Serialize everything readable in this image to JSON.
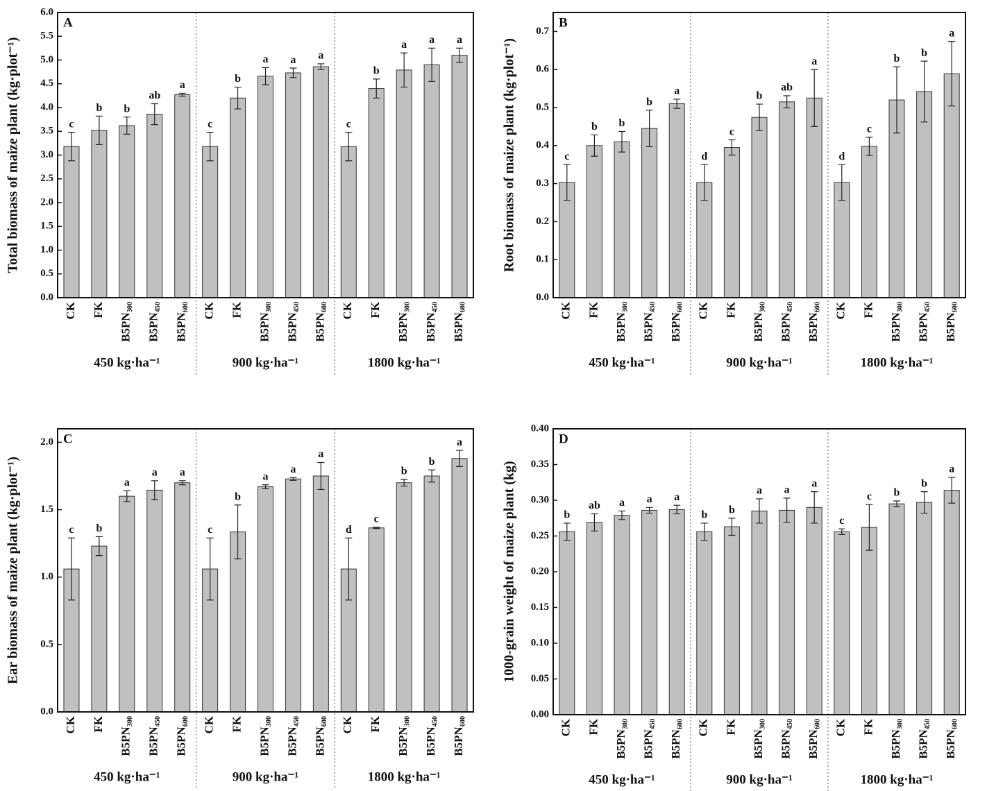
{
  "chart_data": [
    {
      "type": "bar",
      "panel": "A",
      "ylabel": "Total biomass of maize plant (kg·plot⁻¹)",
      "categories": [
        "CK",
        "FK",
        "B5PN₃₀₀",
        "B5PN₄₅₀",
        "B5PN₆₀₀",
        "CK",
        "FK",
        "B5PN₃₀₀",
        "B5PN₄₅₀",
        "B5PN₆₀₀",
        "CK",
        "FK",
        "B5PN₃₀₀",
        "B5PN₄₅₀",
        "B5PN₆₀₀"
      ],
      "groups": [
        "450 kg·ha⁻¹",
        "900 kg·ha⁻¹",
        "1800 kg·ha⁻¹"
      ],
      "values": [
        3.18,
        3.52,
        3.62,
        3.86,
        4.27,
        3.18,
        4.2,
        4.66,
        4.73,
        4.86,
        3.18,
        4.4,
        4.79,
        4.9,
        5.1
      ],
      "errors": [
        0.3,
        0.3,
        0.18,
        0.22,
        0.03,
        0.3,
        0.23,
        0.18,
        0.1,
        0.06,
        0.3,
        0.2,
        0.36,
        0.35,
        0.15
      ],
      "letters": [
        "c",
        "b",
        "b",
        "ab",
        "a",
        "c",
        "b",
        "a",
        "a",
        "a",
        "c",
        "b",
        "a",
        "a",
        "a"
      ],
      "color": "#c0c0c0",
      "ylim": [
        0,
        6
      ],
      "yticks": [
        {
          "value": 0,
          "label": "0.0"
        },
        0.5,
        {
          "value": 1,
          "label": "1.0"
        },
        1.5,
        {
          "value": 2,
          "label": "2.0"
        },
        2.5,
        {
          "value": 3,
          "label": "3.0"
        },
        3.5,
        {
          "value": 4,
          "label": "4.0"
        },
        4.5,
        {
          "value": 5,
          "label": "5.0"
        },
        5.5,
        {
          "value": 6,
          "label": "6.0"
        }
      ]
    },
    {
      "type": "bar",
      "panel": "B",
      "ylabel": "Root biomass of maize plant (kg·plot⁻¹)",
      "categories": [
        "CK",
        "FK",
        "B5PN₃₀₀",
        "B5PN₄₅₀",
        "B5PN₆₀₀",
        "CK",
        "FK",
        "B5PN₃₀₀",
        "B5PN₄₅₀",
        "B5PN₆₀₀",
        "CK",
        "FK",
        "B5PN₃₀₀",
        "B5PN₄₅₀",
        "B5PN₆₀₀"
      ],
      "groups": [
        "450 kg·ha⁻¹",
        "900 kg·ha⁻¹",
        "1800 kg·ha⁻¹"
      ],
      "values": [
        0.303,
        0.4,
        0.41,
        0.445,
        0.51,
        0.303,
        0.395,
        0.474,
        0.515,
        0.525,
        0.303,
        0.398,
        0.52,
        0.542,
        0.589
      ],
      "errors": [
        0.047,
        0.028,
        0.027,
        0.048,
        0.012,
        0.047,
        0.02,
        0.035,
        0.016,
        0.075,
        0.047,
        0.024,
        0.087,
        0.08,
        0.085
      ],
      "letters": [
        "c",
        "b",
        "b",
        "b",
        "a",
        "d",
        "c",
        "b",
        "ab",
        "a",
        "d",
        "c",
        "b",
        "b",
        "a"
      ],
      "color": "#c0c0c0",
      "ylim": [
        0,
        0.75
      ],
      "yticks": [
        {
          "value": 0,
          "label": "0.0"
        },
        0.1,
        0.2,
        0.3,
        0.4,
        0.5,
        0.6,
        0.7
      ]
    },
    {
      "type": "bar",
      "panel": "C",
      "ylabel": "Ear biomass of maize plant (kg·plot⁻¹)",
      "categories": [
        "CK",
        "FK",
        "B5PN₃₀₀",
        "B5PN₄₅₀",
        "B5PN₆₀₀",
        "CK",
        "FK",
        "B5PN₃₀₀",
        "B5PN₄₅₀",
        "B5PN₆₀₀",
        "CK",
        "FK",
        "B5PN₃₀₀",
        "B5PN₄₅₀",
        "B5PN₆₀₀"
      ],
      "groups": [
        "450 kg·ha⁻¹",
        "900 kg·ha⁻¹",
        "1800 kg·ha⁻¹"
      ],
      "values": [
        1.06,
        1.23,
        1.6,
        1.645,
        1.7,
        1.06,
        1.335,
        1.67,
        1.728,
        1.75,
        1.06,
        1.365,
        1.7,
        1.75,
        1.88
      ],
      "errors": [
        0.23,
        0.07,
        0.04,
        0.07,
        0.015,
        0.23,
        0.2,
        0.015,
        0.01,
        0.1,
        0.23,
        0.005,
        0.025,
        0.045,
        0.06
      ],
      "letters": [
        "c",
        "b",
        "a",
        "a",
        "a",
        "c",
        "b",
        "a",
        "a",
        "a",
        "d",
        "c",
        "b",
        "b",
        "a"
      ],
      "color": "#c0c0c0",
      "ylim": [
        0,
        2.1
      ],
      "yticks": [
        {
          "value": 0,
          "label": "0.0"
        },
        0.5,
        {
          "value": 1,
          "label": "1.0"
        },
        1.5,
        {
          "value": 2,
          "label": "2.0"
        }
      ]
    },
    {
      "type": "bar",
      "panel": "D",
      "ylabel": "1000-grain weight of maize plant (kg)",
      "categories": [
        "CK",
        "FK",
        "B5PN₃₀₀",
        "B5PN₄₅₀",
        "B5PN₆₀₀",
        "CK",
        "FK",
        "B5PN₃₀₀",
        "B5PN₄₅₀",
        "B5PN₆₀₀",
        "CK",
        "FK",
        "B5PN₃₀₀",
        "B5PN₄₅₀",
        "B5PN₆₀₀"
      ],
      "groups": [
        "450 kg·ha⁻¹",
        "900 kg·ha⁻¹",
        "1800 kg·ha⁻¹"
      ],
      "values": [
        0.256,
        0.269,
        0.279,
        0.286,
        0.287,
        0.256,
        0.263,
        0.285,
        0.286,
        0.29,
        0.256,
        0.262,
        0.295,
        0.297,
        0.314
      ],
      "errors": [
        0.012,
        0.012,
        0.006,
        0.004,
        0.006,
        0.012,
        0.012,
        0.017,
        0.017,
        0.022,
        0.004,
        0.032,
        0.004,
        0.015,
        0.018
      ],
      "letters": [
        "b",
        "ab",
        "a",
        "a",
        "a",
        "b",
        "b",
        "a",
        "a",
        "a",
        "c",
        "c",
        "b",
        "b",
        "a"
      ],
      "color": "#c0c0c0",
      "ylim": [
        0,
        0.4
      ],
      "yticks": [
        {
          "value": 0,
          "label": "0.00"
        },
        0.05,
        {
          "value": 0.1,
          "label": "0.10"
        },
        0.15,
        {
          "value": 0.2,
          "label": "0.20"
        },
        0.25,
        {
          "value": 0.3,
          "label": "0.30"
        },
        0.35,
        {
          "value": 0.4,
          "label": "0.40"
        }
      ]
    }
  ]
}
